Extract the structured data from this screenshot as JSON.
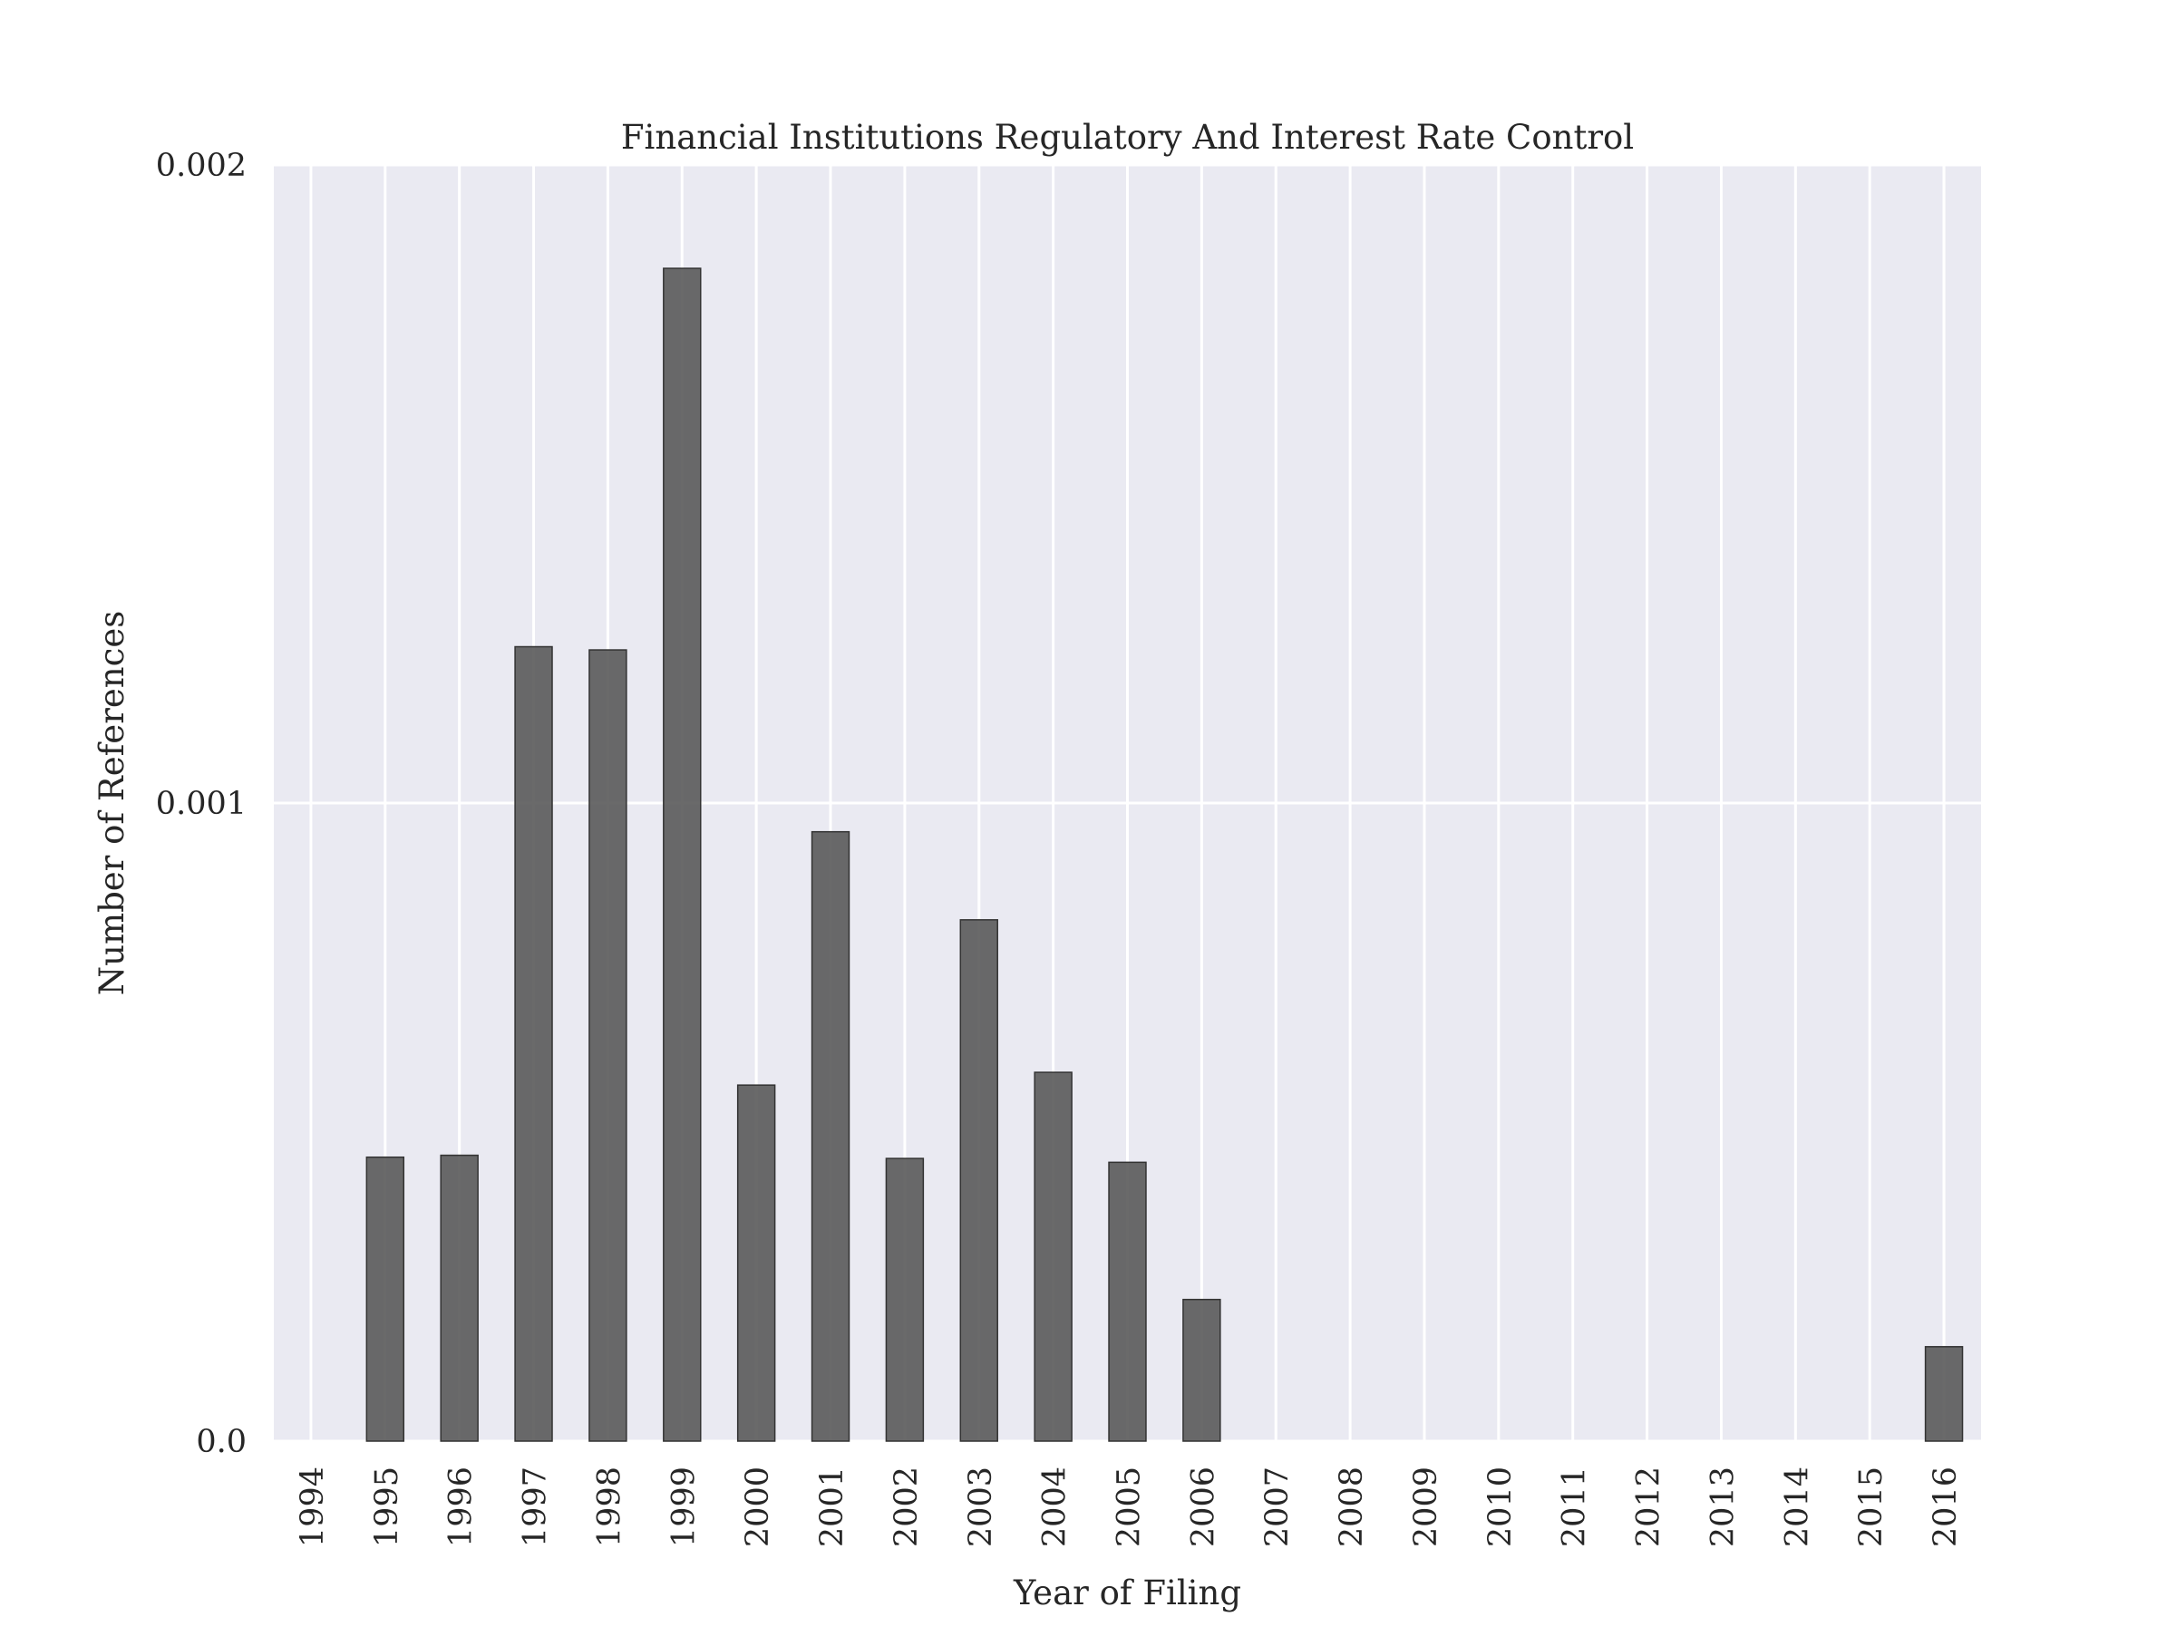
{
  "chart_data": {
    "type": "bar",
    "title": "Financial Institutions Regulatory And Interest Rate Control",
    "xlabel": "Year of Filing",
    "ylabel": "Number of References",
    "categories": [
      "1994",
      "1995",
      "1996",
      "1997",
      "1998",
      "1999",
      "2000",
      "2001",
      "2002",
      "2003",
      "2004",
      "2005",
      "2006",
      "2007",
      "2008",
      "2009",
      "2010",
      "2011",
      "2012",
      "2013",
      "2014",
      "2015",
      "2016"
    ],
    "values": [
      0,
      0.000445,
      0.000448,
      0.001245,
      0.00124,
      0.001838,
      0.000558,
      0.000955,
      0.000443,
      0.000817,
      0.000578,
      0.000437,
      0.000222,
      0,
      0,
      0,
      0,
      0,
      0,
      0,
      0,
      0,
      0.000148
    ],
    "ylim": [
      0,
      0.002
    ],
    "yticks": [
      0.0,
      0.001,
      0.002
    ],
    "ytick_labels": [
      "0.0",
      "0.001",
      "0.002"
    ],
    "grid": true,
    "colors": {
      "background": "#eaeaf2",
      "grid": "#ffffff",
      "bar_fill": "#555555",
      "bar_edge": "#333333"
    }
  }
}
